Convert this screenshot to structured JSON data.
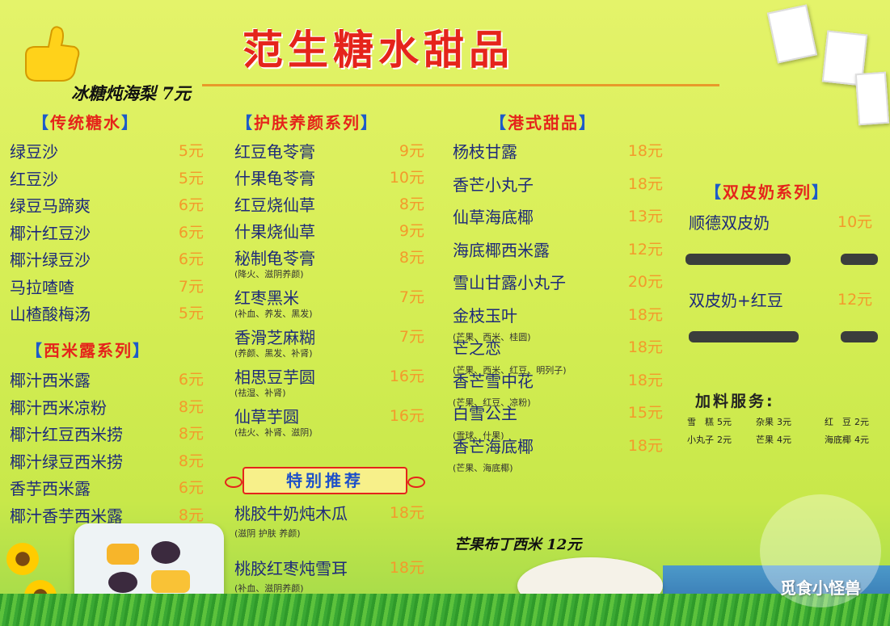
{
  "title": "范生糖水甜品",
  "handwritten_note": "冰糖炖海梨 7元",
  "col1": {
    "section1": "传统糖水",
    "items1": [
      {
        "name": "绿豆沙",
        "price": "5元"
      },
      {
        "name": "红豆沙",
        "price": "5元"
      },
      {
        "name": "绿豆马蹄爽",
        "price": "6元"
      },
      {
        "name": "椰汁红豆沙",
        "price": "6元"
      },
      {
        "name": "椰汁绿豆沙",
        "price": "6元"
      },
      {
        "name": "马拉喳喳",
        "price": "7元"
      },
      {
        "name": "山楂酸梅汤",
        "price": "5元"
      }
    ],
    "section2": "西米露系列",
    "items2": [
      {
        "name": "椰汁西米露",
        "price": "6元"
      },
      {
        "name": "椰汁西米凉粉",
        "price": "8元"
      },
      {
        "name": "椰汁红豆西米捞",
        "price": "8元"
      },
      {
        "name": "椰汁绿豆西米捞",
        "price": "8元"
      },
      {
        "name": "香芋西米露",
        "price": "6元"
      },
      {
        "name": "椰汁香芋西米露",
        "price": "8元"
      }
    ]
  },
  "col2": {
    "section": "护肤养颜系列",
    "items": [
      {
        "name": "红豆龟苓膏",
        "price": "9元",
        "note": ""
      },
      {
        "name": "什果龟苓膏",
        "price": "10元",
        "note": ""
      },
      {
        "name": "红豆烧仙草",
        "price": "8元",
        "note": ""
      },
      {
        "name": "什果烧仙草",
        "price": "9元",
        "note": ""
      },
      {
        "name": "秘制龟苓膏",
        "price": "8元",
        "note": "(降火、滋阴养颜)"
      },
      {
        "name": "红枣黑米",
        "price": "7元",
        "note": "(补血、养发、黑发)"
      },
      {
        "name": "香滑芝麻糊",
        "price": "7元",
        "note": "(养颜、黑发、补肾)"
      },
      {
        "name": "相思豆芋圆",
        "price": "16元",
        "note": "(祛湿、补肾)"
      },
      {
        "name": "仙草芋圆",
        "price": "16元",
        "note": "(祛火、补肾、滋阴)"
      }
    ],
    "special_badge": "特别推荐",
    "specials": [
      {
        "name": "桃胶牛奶炖木瓜",
        "price": "18元",
        "note": "(滋阴 护肤 养颜)"
      },
      {
        "name": "桃胶红枣炖雪耳",
        "price": "18元",
        "note": "(补血、滋阴养颜)"
      }
    ]
  },
  "col3": {
    "section": "港式甜品",
    "items": [
      {
        "name": "杨枝甘露",
        "price": "18元",
        "note": ""
      },
      {
        "name": "香芒小丸子",
        "price": "18元",
        "note": ""
      },
      {
        "name": "仙草海底椰",
        "price": "13元",
        "note": ""
      },
      {
        "name": "海底椰西米露",
        "price": "12元",
        "note": ""
      },
      {
        "name": "雪山甘露小丸子",
        "price": "20元",
        "note": ""
      },
      {
        "name": "金枝玉叶",
        "price": "18元",
        "note": "(芒果、西米、桂圆)"
      },
      {
        "name": "芒之恋",
        "price": "18元",
        "note": "(芒果、西米、红豆、明列子)"
      },
      {
        "name": "香芒雪中花",
        "price": "18元",
        "note": "(芒果、红豆、凉粉)"
      },
      {
        "name": "白雪公主",
        "price": "15元",
        "note": "(雪球、什果)"
      },
      {
        "name": "香芒海底椰",
        "price": "18元",
        "note": "(芒果、海底椰)"
      }
    ],
    "handwritten_extra": "芒果布丁西米 12元"
  },
  "col4": {
    "section": "双皮奶系列",
    "items": [
      {
        "name": "顺德双皮奶",
        "price": "10元"
      },
      {
        "name": "双皮奶+红豆",
        "price": "12元"
      }
    ],
    "extras_title": "加料服务:",
    "extras": [
      {
        "name": "雪　糕",
        "price": "5元"
      },
      {
        "name": "杂果",
        "price": "3元"
      },
      {
        "name": "红　豆",
        "price": "2元"
      },
      {
        "name": "小丸子",
        "price": "2元"
      },
      {
        "name": "芒果",
        "price": "4元"
      },
      {
        "name": "海底椰",
        "price": "4元"
      }
    ]
  },
  "watermark": "觅食小怪兽",
  "colors": {
    "title": "#e5241b",
    "item": "#1e2a7a",
    "price": "#f39a2b",
    "bracket": "#1d5bc9"
  }
}
